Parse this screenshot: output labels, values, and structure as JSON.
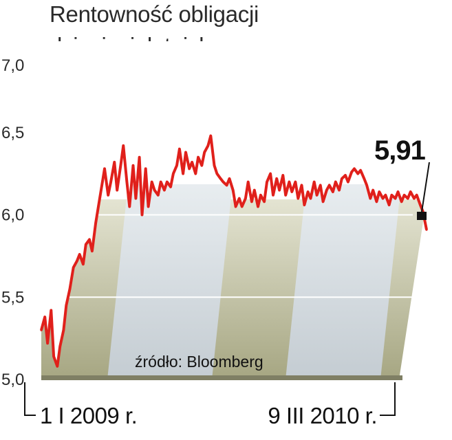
{
  "chart_data": {
    "type": "line",
    "title_lines": [
      "Rentowność obligacji",
      "dziesięcioletnich, w proc."
    ],
    "source": "źródło: Bloomberg",
    "ylim": [
      5.0,
      7.0
    ],
    "y_ticks": [
      {
        "value": 7.0,
        "label": "7,0"
      },
      {
        "value": 6.5,
        "label": "6,5"
      },
      {
        "value": 6.0,
        "label": "6,0"
      },
      {
        "value": 5.5,
        "label": "5,5"
      },
      {
        "value": 5.0,
        "label": "5,0"
      }
    ],
    "x_range": [
      "2009-01-01",
      "2010-03-09"
    ],
    "x_labels": [
      {
        "date": "2009-01-01",
        "label": "1 I 2009 r."
      },
      {
        "date": "2010-03-09",
        "label": "9 III 2010 r."
      }
    ],
    "last_value_label": "5,91",
    "grid": "horizontal at 5.5 and 6.0",
    "colors": {
      "line": "#e0201b",
      "band_olive": "#b3b393",
      "band_blue": "#cfd6da",
      "text": "#2a2a2a"
    },
    "series": [
      {
        "values": [
          [
            "2009-01-01",
            5.3
          ],
          [
            "2009-01-05",
            5.38
          ],
          [
            "2009-01-08",
            5.22
          ],
          [
            "2009-01-12",
            5.42
          ],
          [
            "2009-01-15",
            5.14
          ],
          [
            "2009-01-19",
            5.08
          ],
          [
            "2009-01-22",
            5.2
          ],
          [
            "2009-01-26",
            5.3
          ],
          [
            "2009-01-29",
            5.45
          ],
          [
            "2009-02-02",
            5.55
          ],
          [
            "2009-02-06",
            5.68
          ],
          [
            "2009-02-10",
            5.72
          ],
          [
            "2009-02-13",
            5.76
          ],
          [
            "2009-02-17",
            5.7
          ],
          [
            "2009-02-20",
            5.82
          ],
          [
            "2009-02-24",
            5.85
          ],
          [
            "2009-02-27",
            5.78
          ],
          [
            "2009-03-03",
            5.95
          ],
          [
            "2009-03-06",
            6.05
          ],
          [
            "2009-03-10",
            6.18
          ],
          [
            "2009-03-13",
            6.28
          ],
          [
            "2009-03-17",
            6.12
          ],
          [
            "2009-03-20",
            6.2
          ],
          [
            "2009-03-24",
            6.32
          ],
          [
            "2009-03-27",
            6.15
          ],
          [
            "2009-03-31",
            6.3
          ],
          [
            "2009-04-03",
            6.42
          ],
          [
            "2009-04-07",
            6.2
          ],
          [
            "2009-04-10",
            6.05
          ],
          [
            "2009-04-14",
            6.3
          ],
          [
            "2009-04-17",
            6.1
          ],
          [
            "2009-04-21",
            6.35
          ],
          [
            "2009-04-24",
            6.0
          ],
          [
            "2009-04-28",
            6.28
          ],
          [
            "2009-05-01",
            6.05
          ],
          [
            "2009-05-05",
            6.2
          ],
          [
            "2009-05-08",
            6.15
          ],
          [
            "2009-05-12",
            6.12
          ],
          [
            "2009-05-15",
            6.2
          ],
          [
            "2009-05-19",
            6.15
          ],
          [
            "2009-05-22",
            6.2
          ],
          [
            "2009-05-26",
            6.17
          ],
          [
            "2009-05-29",
            6.25
          ],
          [
            "2009-06-02",
            6.3
          ],
          [
            "2009-06-05",
            6.4
          ],
          [
            "2009-06-09",
            6.25
          ],
          [
            "2009-06-12",
            6.38
          ],
          [
            "2009-06-16",
            6.28
          ],
          [
            "2009-06-19",
            6.32
          ],
          [
            "2009-06-23",
            6.25
          ],
          [
            "2009-06-26",
            6.35
          ],
          [
            "2009-06-30",
            6.3
          ],
          [
            "2009-07-03",
            6.38
          ],
          [
            "2009-07-07",
            6.42
          ],
          [
            "2009-07-10",
            6.48
          ],
          [
            "2009-07-14",
            6.3
          ],
          [
            "2009-07-17",
            6.25
          ],
          [
            "2009-07-21",
            6.22
          ],
          [
            "2009-07-24",
            6.2
          ],
          [
            "2009-07-28",
            6.18
          ],
          [
            "2009-07-31",
            6.22
          ],
          [
            "2009-08-04",
            6.15
          ],
          [
            "2009-08-07",
            6.05
          ],
          [
            "2009-08-11",
            6.1
          ],
          [
            "2009-08-14",
            6.05
          ],
          [
            "2009-08-18",
            6.1
          ],
          [
            "2009-08-21",
            6.2
          ],
          [
            "2009-08-25",
            6.08
          ],
          [
            "2009-08-28",
            6.15
          ],
          [
            "2009-09-01",
            6.05
          ],
          [
            "2009-09-04",
            6.12
          ],
          [
            "2009-09-08",
            6.08
          ],
          [
            "2009-09-11",
            6.2
          ],
          [
            "2009-09-15",
            6.25
          ],
          [
            "2009-09-18",
            6.12
          ],
          [
            "2009-09-22",
            6.22
          ],
          [
            "2009-09-25",
            6.15
          ],
          [
            "2009-09-29",
            6.24
          ],
          [
            "2009-10-02",
            6.12
          ],
          [
            "2009-10-06",
            6.2
          ],
          [
            "2009-10-09",
            6.14
          ],
          [
            "2009-10-13",
            6.2
          ],
          [
            "2009-10-16",
            6.1
          ],
          [
            "2009-10-20",
            6.18
          ],
          [
            "2009-10-23",
            6.06
          ],
          [
            "2009-10-27",
            6.14
          ],
          [
            "2009-10-30",
            6.1
          ],
          [
            "2009-11-03",
            6.2
          ],
          [
            "2009-11-06",
            6.12
          ],
          [
            "2009-11-10",
            6.18
          ],
          [
            "2009-11-13",
            6.08
          ],
          [
            "2009-11-17",
            6.15
          ],
          [
            "2009-11-20",
            6.18
          ],
          [
            "2009-11-24",
            6.14
          ],
          [
            "2009-11-27",
            6.2
          ],
          [
            "2009-12-01",
            6.15
          ],
          [
            "2009-12-04",
            6.22
          ],
          [
            "2009-12-08",
            6.24
          ],
          [
            "2009-12-11",
            6.2
          ],
          [
            "2009-12-15",
            6.26
          ],
          [
            "2009-12-18",
            6.28
          ],
          [
            "2009-12-22",
            6.25
          ],
          [
            "2009-12-25",
            6.27
          ],
          [
            "2009-12-29",
            6.22
          ],
          [
            "2010-01-01",
            6.18
          ],
          [
            "2010-01-05",
            6.1
          ],
          [
            "2010-01-08",
            6.15
          ],
          [
            "2010-01-12",
            6.08
          ],
          [
            "2010-01-15",
            6.14
          ],
          [
            "2010-01-19",
            6.1
          ],
          [
            "2010-01-22",
            6.12
          ],
          [
            "2010-01-26",
            6.06
          ],
          [
            "2010-01-29",
            6.12
          ],
          [
            "2010-02-02",
            6.1
          ],
          [
            "2010-02-05",
            6.14
          ],
          [
            "2010-02-09",
            6.08
          ],
          [
            "2010-02-12",
            6.12
          ],
          [
            "2010-02-16",
            6.1
          ],
          [
            "2010-02-19",
            6.14
          ],
          [
            "2010-02-23",
            6.1
          ],
          [
            "2010-02-26",
            6.12
          ],
          [
            "2010-03-02",
            6.06
          ],
          [
            "2010-03-05",
            6.02
          ],
          [
            "2010-03-09",
            5.91
          ]
        ]
      }
    ]
  }
}
